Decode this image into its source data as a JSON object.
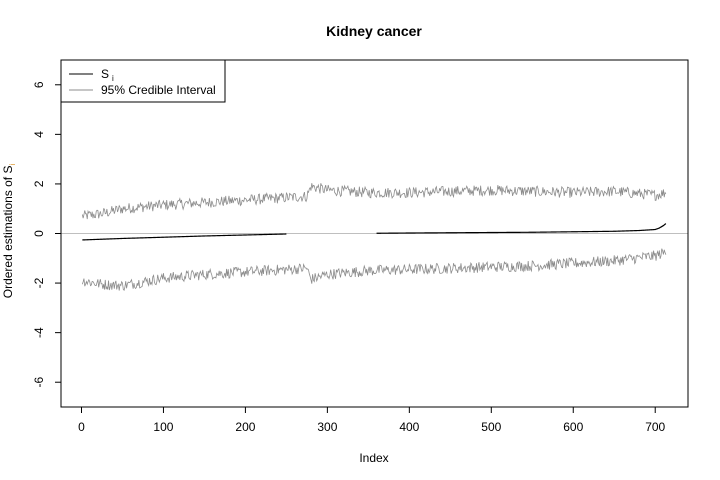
{
  "chart_data": {
    "type": "line",
    "title": "Kidney cancer",
    "xlabel": "Index",
    "ylabel": "Ordered estimations of S",
    "ylabel_subscript": "i",
    "xlim": [
      -25,
      740
    ],
    "ylim": [
      -7,
      7
    ],
    "x_ticks": [
      0,
      100,
      200,
      300,
      400,
      500,
      600,
      700
    ],
    "y_ticks": [
      -6,
      -4,
      -2,
      0,
      2,
      4,
      6
    ],
    "reference_line_y": 0,
    "grid": false,
    "legend": {
      "position": "top-left",
      "entries": [
        {
          "label": "S",
          "subscript": "i",
          "color": "#000000"
        },
        {
          "label": "95% Credible Interval",
          "color": "#8c8c8c"
        }
      ]
    },
    "series": [
      {
        "name": "S",
        "subscript": "i",
        "color": "#000000",
        "x": [
          1,
          50,
          100,
          150,
          200,
          250,
          300,
          360,
          400,
          450,
          500,
          550,
          600,
          650,
          680,
          700,
          705,
          710,
          713
        ],
        "y": [
          -0.26,
          -0.2,
          -0.15,
          -0.1,
          -0.06,
          -0.02,
          0.0,
          0.01,
          0.02,
          0.03,
          0.04,
          0.05,
          0.07,
          0.09,
          0.12,
          0.16,
          0.22,
          0.32,
          0.4
        ],
        "gap": [
          250,
          360
        ]
      },
      {
        "name": "95% Credible Interval",
        "color": "#8c8c8c",
        "x": [
          1,
          25,
          50,
          100,
          150,
          200,
          250,
          275,
          280,
          300,
          350,
          400,
          450,
          500,
          550,
          600,
          650,
          700,
          713
        ],
        "y": [
          0.7,
          0.8,
          1.0,
          1.15,
          1.25,
          1.35,
          1.45,
          1.5,
          1.9,
          1.75,
          1.65,
          1.65,
          1.7,
          1.75,
          1.7,
          1.65,
          1.7,
          1.55,
          1.65
        ],
        "noise": 0.22
      },
      {
        "name": "95% Credible Interval",
        "color": "#8c8c8c",
        "x": [
          1,
          25,
          50,
          100,
          150,
          200,
          250,
          275,
          280,
          300,
          350,
          400,
          450,
          500,
          550,
          600,
          650,
          700,
          713
        ],
        "y": [
          -1.9,
          -2.05,
          -2.1,
          -1.8,
          -1.65,
          -1.55,
          -1.45,
          -1.4,
          -1.85,
          -1.65,
          -1.5,
          -1.45,
          -1.4,
          -1.35,
          -1.3,
          -1.2,
          -1.1,
          -0.9,
          -0.75
        ],
        "noise": 0.22
      }
    ]
  }
}
